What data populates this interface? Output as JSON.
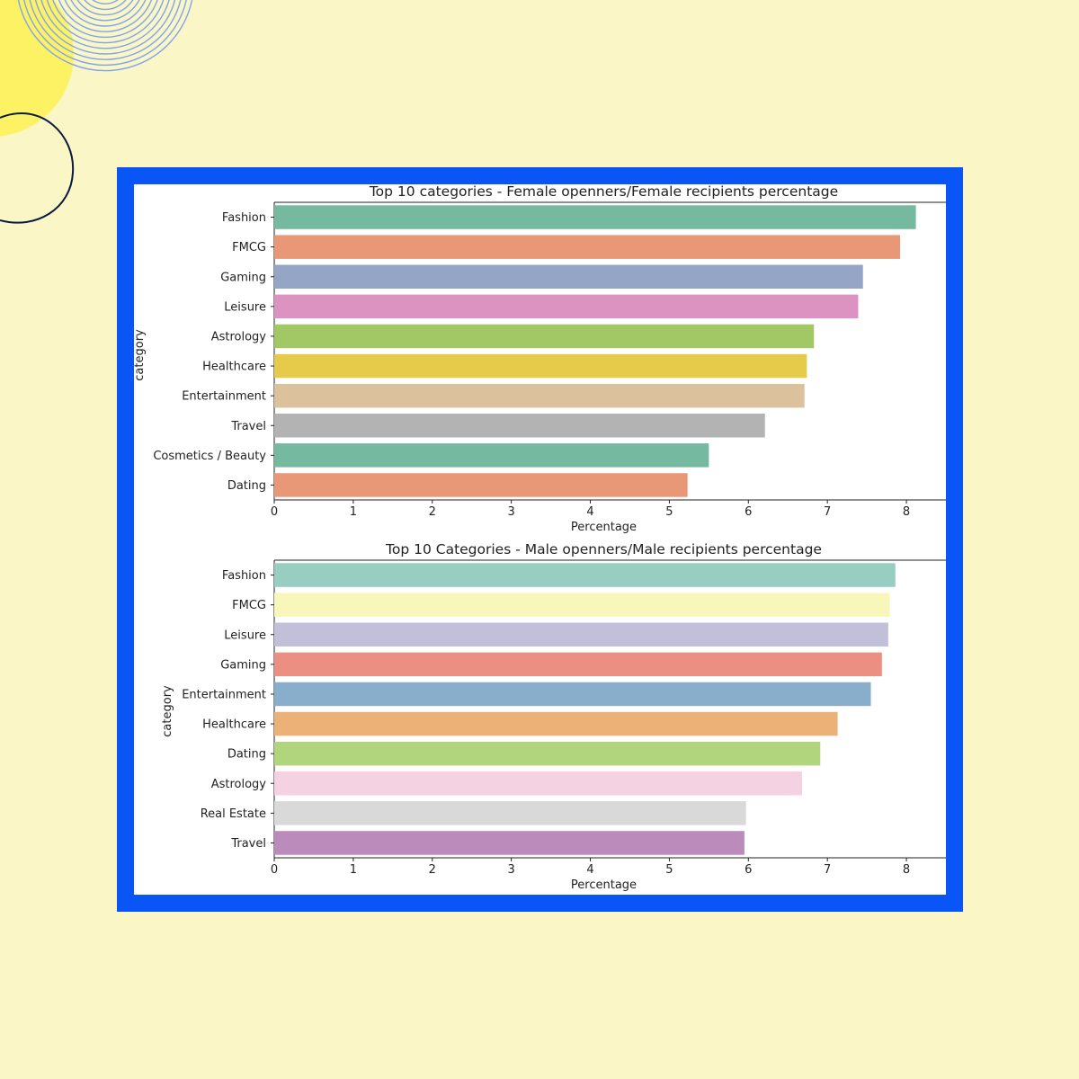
{
  "chart_data": [
    {
      "type": "bar",
      "orientation": "horizontal",
      "title": "Top 10 categories  - Female openners/Female recipients percentage",
      "xlabel": "Percentage",
      "ylabel": "category",
      "xlim": [
        0,
        8.5
      ],
      "xticks": [
        "0",
        "1",
        "2",
        "3",
        "4",
        "5",
        "6",
        "7",
        "8"
      ],
      "categories": [
        "Fashion",
        "FMCG",
        "Gaming",
        "Leisure",
        "Astrology",
        "Healthcare",
        "Entertainment",
        "Travel",
        "Cosmetics / Beauty",
        "Dating"
      ],
      "values": [
        8.12,
        7.92,
        7.45,
        7.39,
        6.83,
        6.74,
        6.71,
        6.21,
        5.5,
        5.23
      ],
      "colors": [
        "#74b9a0",
        "#e99877",
        "#94a5c6",
        "#dd93c2",
        "#a2c866",
        "#e6cb4b",
        "#dbc19c",
        "#b3b3b3",
        "#74b9a0",
        "#e99877"
      ]
    },
    {
      "type": "bar",
      "orientation": "horizontal",
      "title": "Top 10 Categories - Male openners/Male recipients percentage",
      "xlabel": "Percentage",
      "ylabel": "category",
      "xlim": [
        0,
        8.5
      ],
      "xticks": [
        "0",
        "1",
        "2",
        "3",
        "4",
        "5",
        "6",
        "7",
        "8"
      ],
      "categories": [
        "Fashion",
        "FMCG",
        "Leisure",
        "Gaming",
        "Entertainment",
        "Healthcare",
        "Dating",
        "Astrology",
        "Real Estate",
        "Travel"
      ],
      "values": [
        7.86,
        7.79,
        7.77,
        7.69,
        7.55,
        7.13,
        6.91,
        6.68,
        5.97,
        5.95
      ],
      "colors": [
        "#98cdc1",
        "#f9f6bb",
        "#c2bfd8",
        "#eb8f83",
        "#89aecb",
        "#ebb176",
        "#b1d57c",
        "#f5d2e2",
        "#d9d9d9",
        "#ba8bbb"
      ]
    }
  ],
  "decor_colors": {
    "page": "#faf6c6",
    "frame": "#0a55f5",
    "yellow_blob": "#fdf264",
    "rings": "#7ea4f0",
    "outline": "#0b1a40"
  }
}
